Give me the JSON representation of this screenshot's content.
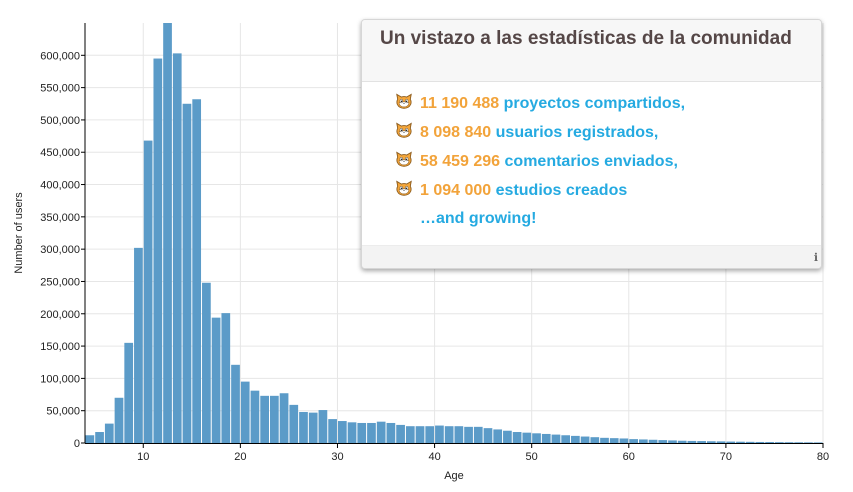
{
  "chart_data": {
    "type": "bar",
    "xlabel": "Age",
    "ylabel": "Number of users",
    "xlim": [
      4,
      80
    ],
    "ylim": [
      0,
      650000
    ],
    "x_ticks": [
      10,
      20,
      30,
      40,
      50,
      60,
      70,
      80
    ],
    "y_ticks": [
      0,
      50000,
      100000,
      150000,
      200000,
      250000,
      300000,
      350000,
      400000,
      450000,
      500000,
      550000,
      600000
    ],
    "grid": true,
    "bar_color": "#5b9bc8",
    "x": [
      4,
      5,
      6,
      7,
      8,
      9,
      10,
      11,
      12,
      13,
      14,
      15,
      16,
      17,
      18,
      19,
      20,
      21,
      22,
      23,
      24,
      25,
      26,
      27,
      28,
      29,
      30,
      31,
      32,
      33,
      34,
      35,
      36,
      37,
      38,
      39,
      40,
      41,
      42,
      43,
      44,
      45,
      46,
      47,
      48,
      49,
      50,
      51,
      52,
      53,
      54,
      55,
      56,
      57,
      58,
      59,
      60,
      61,
      62,
      63,
      64,
      65,
      66,
      67,
      68,
      69,
      70,
      71,
      72,
      73,
      74,
      75,
      76,
      77,
      78,
      79
    ],
    "values": [
      12000,
      17000,
      30000,
      70000,
      155000,
      302000,
      468000,
      595000,
      650000,
      603000,
      525000,
      532000,
      248000,
      194000,
      201000,
      121000,
      95000,
      81000,
      73000,
      73000,
      77000,
      59000,
      48000,
      47000,
      51000,
      37000,
      34000,
      32000,
      31000,
      31000,
      33000,
      31000,
      28000,
      26000,
      26000,
      26000,
      27000,
      26000,
      26000,
      25000,
      25000,
      23000,
      21000,
      19000,
      17000,
      16000,
      15000,
      14000,
      13000,
      12000,
      11000,
      10000,
      9000,
      8000,
      7500,
      7000,
      6000,
      5500,
      5000,
      4500,
      4000,
      3500,
      3200,
      3000,
      2700,
      2500,
      2200,
      2000,
      1800,
      1600,
      1500,
      1300,
      1200,
      1100,
      1000,
      900
    ]
  },
  "stats_panel": {
    "title": "Un vistazo a las estadísticas de la comunidad",
    "items": [
      {
        "number": "11 190 488",
        "label": "proyectos compartidos,"
      },
      {
        "number": "8 098 840",
        "label": "usuarios registrados,"
      },
      {
        "number": "58 459 296",
        "label": "comentarios enviados,"
      },
      {
        "number": "1 094 000",
        "label": "estudios creados"
      }
    ],
    "growing": "…and growing!",
    "info_icon": "info-icon",
    "item_icon": "scratch-cat-icon",
    "colors": {
      "number": "#f2a33a",
      "label": "#25aae1",
      "title": "#554747"
    }
  }
}
